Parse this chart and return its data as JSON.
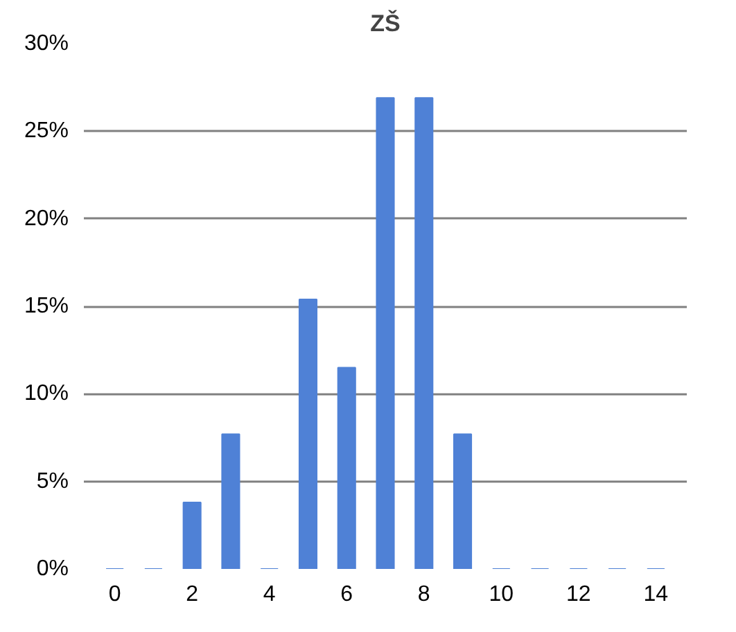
{
  "chart_data": {
    "type": "bar",
    "title": "ZŠ",
    "categories": [
      "0",
      null,
      "2",
      null,
      "4",
      null,
      "6",
      null,
      "8",
      null,
      "10",
      null,
      "12",
      null,
      "14"
    ],
    "values": [
      0,
      0,
      3.8,
      7.7,
      0,
      15.4,
      11.5,
      26.9,
      26.9,
      7.7,
      0,
      0,
      0,
      0,
      0
    ],
    "color": "#4f81d6",
    "ylim": [
      0,
      30
    ],
    "yticks": [
      {
        "value": 0,
        "label": "0%"
      },
      {
        "value": 5,
        "label": "5%"
      },
      {
        "value": 10,
        "label": "10%"
      },
      {
        "value": 15,
        "label": "15%"
      },
      {
        "value": 20,
        "label": "20%"
      },
      {
        "value": 25,
        "label": "25%"
      },
      {
        "value": 30,
        "label": "30%"
      }
    ],
    "grid": "y"
  }
}
